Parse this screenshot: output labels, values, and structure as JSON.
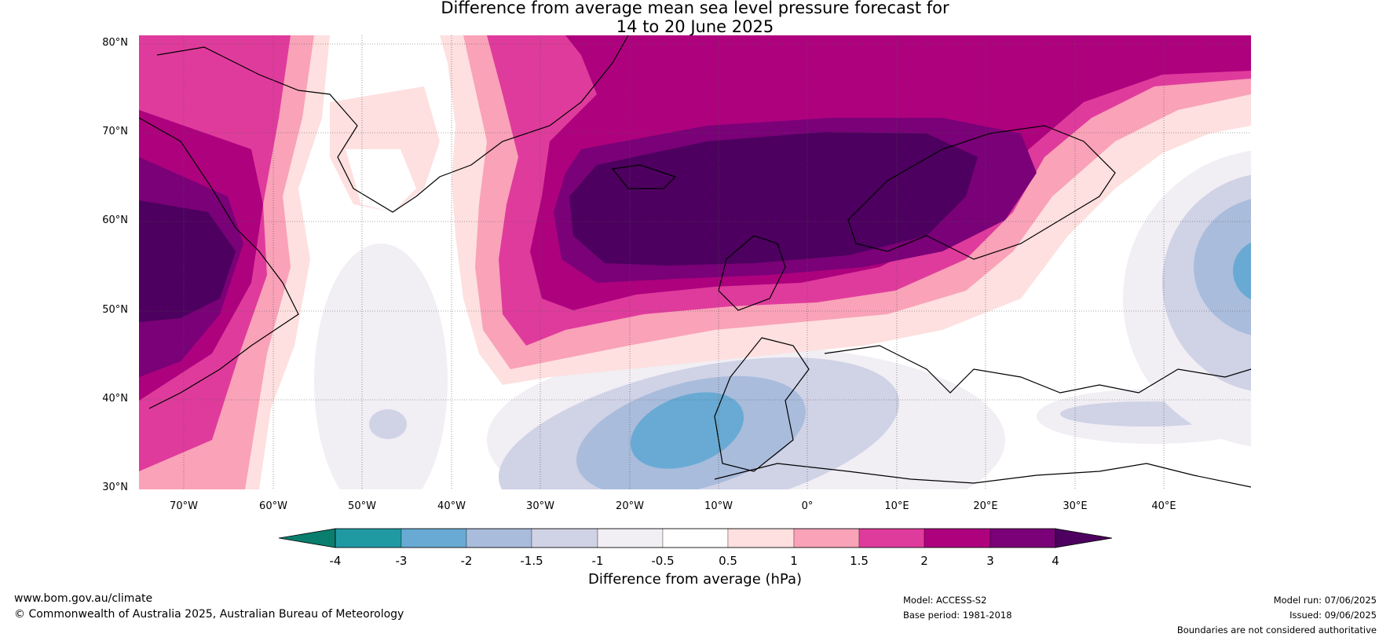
{
  "title_line1": "Difference from average mean sea level pressure forecast for",
  "title_line2": "14 to 20 June 2025",
  "lat_labels": [
    "80°N",
    "70°N",
    "60°N",
    "50°N",
    "40°N",
    "30°N"
  ],
  "lon_labels": [
    "70°W",
    "60°W",
    "50°W",
    "40°W",
    "30°W",
    "20°W",
    "10°W",
    "0°",
    "10°E",
    "20°E",
    "30°E",
    "40°E"
  ],
  "colorbar": {
    "ticks": [
      "-4",
      "-3",
      "-2",
      "-1.5",
      "-1",
      "-0.5",
      "0.5",
      "1",
      "1.5",
      "2",
      "3",
      "4"
    ],
    "colors": [
      "#0a7e6e",
      "#1f9aa3",
      "#68aad3",
      "#a9bcdc",
      "#d0d2e6",
      "#f1eef4",
      "#ffffff",
      "#fde0df",
      "#f9a2b8",
      "#df3b9c",
      "#ae017e",
      "#7a0177",
      "#4d005f"
    ],
    "label": "Difference from average (hPa)"
  },
  "footer": {
    "website": "www.bom.gov.au/climate",
    "copyright": "© Commonwealth of Australia 2025, Australian Bureau of Meteorology",
    "model": "Model: ACCESS-S2",
    "base_period": "Base period: 1981-2018",
    "model_run": "Model run: 07/06/2025",
    "issued": "Issued: 09/06/2025",
    "disclaimer": "Boundaries are not considered authoritative"
  }
}
